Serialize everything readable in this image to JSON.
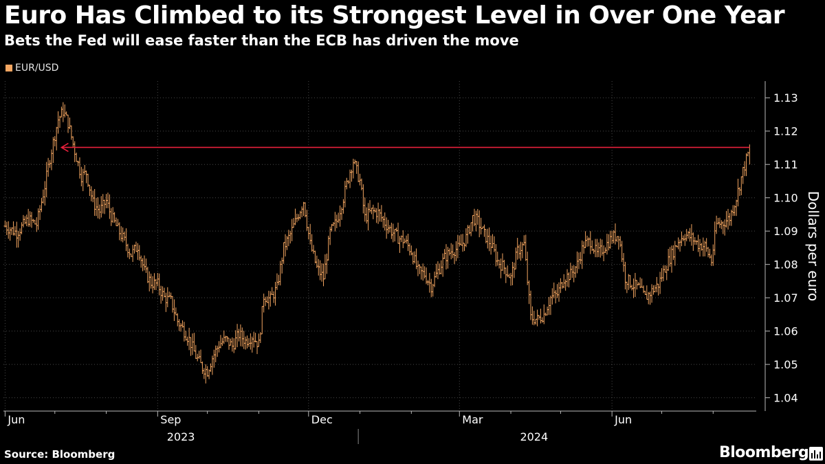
{
  "title": "Euro Has Climbed to its Strongest Level in Over One Year",
  "subtitle": "Bets the Fed will ease faster than the ECB has driven the move",
  "source": "Source: Bloomberg",
  "brand": "Bloomberg",
  "colors": {
    "series": "#f4a661",
    "annotation": "#e8203c",
    "grid": "#4a4a4a",
    "text": "#ffffff"
  },
  "chart_data": {
    "type": "line",
    "style": "ohlc-bars",
    "legend": "EUR/USD",
    "legend_position": "top-left",
    "ylabel": "Dollars per euro",
    "y_axis_position": "right",
    "ylim": [
      1.036,
      1.135
    ],
    "yticks": [
      1.04,
      1.05,
      1.06,
      1.07,
      1.08,
      1.09,
      1.1,
      1.11,
      1.12,
      1.13
    ],
    "ytick_labels": [
      "1.04",
      "1.05",
      "1.06",
      "1.07",
      "1.08",
      "1.09",
      "1.10",
      "1.11",
      "1.12",
      "1.13"
    ],
    "xlim": [
      "2023-05-31",
      "2024-08-27"
    ],
    "x_major_ticks": [
      {
        "date": "2023-06-01",
        "label": "Jun"
      },
      {
        "date": "2023-09-01",
        "label": "Sep"
      },
      {
        "date": "2023-12-01",
        "label": "Dec"
      },
      {
        "date": "2024-03-01",
        "label": "Mar"
      },
      {
        "date": "2024-06-01",
        "label": "Jun"
      }
    ],
    "x_minor_ticks": [
      "2023-07-01",
      "2023-08-01",
      "2023-10-01",
      "2023-11-01",
      "2024-01-01",
      "2024-02-01",
      "2024-04-01",
      "2024-05-01",
      "2024-07-01",
      "2024-08-01"
    ],
    "year_labels": [
      {
        "year": "2023",
        "center": "2023-09-15"
      },
      {
        "year": "2024",
        "center": "2024-04-15"
      }
    ],
    "year_divider": "2023-12-31",
    "grid": true,
    "annotation": {
      "type": "arrow",
      "y": 1.1151,
      "from": "2024-08-23",
      "to": "2023-07-05"
    },
    "points": [
      [
        "2023-06-01",
        1.0915
      ],
      [
        "2023-06-08",
        1.0895
      ],
      [
        "2023-06-15",
        1.0935
      ],
      [
        "2023-06-20",
        1.092
      ],
      [
        "2023-06-22",
        1.0965
      ],
      [
        "2023-06-25",
        1.1035
      ],
      [
        "2023-06-28",
        1.112
      ],
      [
        "2023-07-03",
        1.1235
      ],
      [
        "2023-07-06",
        1.126
      ],
      [
        "2023-07-09",
        1.1225
      ],
      [
        "2023-07-13",
        1.114
      ],
      [
        "2023-07-17",
        1.1065
      ],
      [
        "2023-07-20",
        1.1075
      ],
      [
        "2023-07-24",
        1.0985
      ],
      [
        "2023-07-28",
        1.096
      ],
      [
        "2023-08-01",
        1.099
      ],
      [
        "2023-08-04",
        1.0945
      ],
      [
        "2023-08-08",
        1.0905
      ],
      [
        "2023-08-12",
        1.087
      ],
      [
        "2023-08-16",
        1.083
      ],
      [
        "2023-08-20",
        1.0855
      ],
      [
        "2023-08-24",
        1.078
      ],
      [
        "2023-08-28",
        1.0745
      ],
      [
        "2023-09-01",
        1.074
      ],
      [
        "2023-09-05",
        1.07
      ],
      [
        "2023-09-09",
        1.069
      ],
      [
        "2023-09-13",
        1.063
      ],
      [
        "2023-09-17",
        1.06
      ],
      [
        "2023-09-20",
        1.0575
      ],
      [
        "2023-09-24",
        1.0525
      ],
      [
        "2023-09-28",
        1.049
      ],
      [
        "2023-10-01",
        1.048
      ],
      [
        "2023-10-04",
        1.052
      ],
      [
        "2023-10-08",
        1.056
      ],
      [
        "2023-10-12",
        1.0575
      ],
      [
        "2023-10-16",
        1.0555
      ],
      [
        "2023-10-20",
        1.059
      ],
      [
        "2023-10-24",
        1.057
      ],
      [
        "2023-10-28",
        1.0585
      ],
      [
        "2023-11-01",
        1.056
      ],
      [
        "2023-11-04",
        1.0705
      ],
      [
        "2023-11-08",
        1.0695
      ],
      [
        "2023-11-12",
        1.073
      ],
      [
        "2023-11-16",
        1.085
      ],
      [
        "2023-11-20",
        1.089
      ],
      [
        "2023-11-24",
        1.094
      ],
      [
        "2023-11-28",
        1.099
      ],
      [
        "2023-12-02",
        1.086
      ],
      [
        "2023-12-06",
        1.079
      ],
      [
        "2023-12-10",
        1.076
      ],
      [
        "2023-12-14",
        1.0895
      ],
      [
        "2023-12-18",
        1.093
      ],
      [
        "2023-12-22",
        1.1
      ],
      [
        "2023-12-26",
        1.108
      ],
      [
        "2023-12-28",
        1.111
      ],
      [
        "2024-01-01",
        1.105
      ],
      [
        "2024-01-04",
        1.094
      ],
      [
        "2024-01-08",
        1.096
      ],
      [
        "2024-01-12",
        1.0955
      ],
      [
        "2024-01-16",
        1.0925
      ],
      [
        "2024-01-20",
        1.09
      ],
      [
        "2024-01-24",
        1.088
      ],
      [
        "2024-01-28",
        1.087
      ],
      [
        "2024-02-01",
        1.084
      ],
      [
        "2024-02-05",
        1.078
      ],
      [
        "2024-02-09",
        1.077
      ],
      [
        "2024-02-13",
        1.0735
      ],
      [
        "2024-02-17",
        1.078
      ],
      [
        "2024-02-21",
        1.082
      ],
      [
        "2024-02-25",
        1.084
      ],
      [
        "2024-03-01",
        1.085
      ],
      [
        "2024-03-05",
        1.088
      ],
      [
        "2024-03-09",
        1.094
      ],
      [
        "2024-03-12",
        1.093
      ],
      [
        "2024-03-16",
        1.089
      ],
      [
        "2024-03-20",
        1.086
      ],
      [
        "2024-03-24",
        1.081
      ],
      [
        "2024-03-28",
        1.079
      ],
      [
        "2024-04-01",
        1.076
      ],
      [
        "2024-04-05",
        1.084
      ],
      [
        "2024-04-09",
        1.086
      ],
      [
        "2024-04-13",
        1.064
      ],
      [
        "2024-04-17",
        1.0635
      ],
      [
        "2024-04-21",
        1.065
      ],
      [
        "2024-04-25",
        1.07
      ],
      [
        "2024-04-29",
        1.071
      ],
      [
        "2024-05-03",
        1.076
      ],
      [
        "2024-05-07",
        1.077
      ],
      [
        "2024-05-11",
        1.08
      ],
      [
        "2024-05-15",
        1.086
      ],
      [
        "2024-05-19",
        1.087
      ],
      [
        "2024-05-23",
        1.083
      ],
      [
        "2024-05-27",
        1.085
      ],
      [
        "2024-06-01",
        1.088
      ],
      [
        "2024-06-05",
        1.089
      ],
      [
        "2024-06-09",
        1.076
      ],
      [
        "2024-06-13",
        1.074
      ],
      [
        "2024-06-17",
        1.073
      ],
      [
        "2024-06-21",
        1.07
      ],
      [
        "2024-06-25",
        1.072
      ],
      [
        "2024-06-29",
        1.074
      ],
      [
        "2024-07-03",
        1.079
      ],
      [
        "2024-07-07",
        1.083
      ],
      [
        "2024-07-11",
        1.087
      ],
      [
        "2024-07-15",
        1.089
      ],
      [
        "2024-07-19",
        1.088
      ],
      [
        "2024-07-23",
        1.086
      ],
      [
        "2024-07-27",
        1.0855
      ],
      [
        "2024-07-31",
        1.081
      ],
      [
        "2024-08-03",
        1.092
      ],
      [
        "2024-08-07",
        1.0925
      ],
      [
        "2024-08-11",
        1.094
      ],
      [
        "2024-08-15",
        1.1
      ],
      [
        "2024-08-19",
        1.108
      ],
      [
        "2024-08-22",
        1.113
      ],
      [
        "2024-08-23",
        1.114
      ]
    ]
  }
}
